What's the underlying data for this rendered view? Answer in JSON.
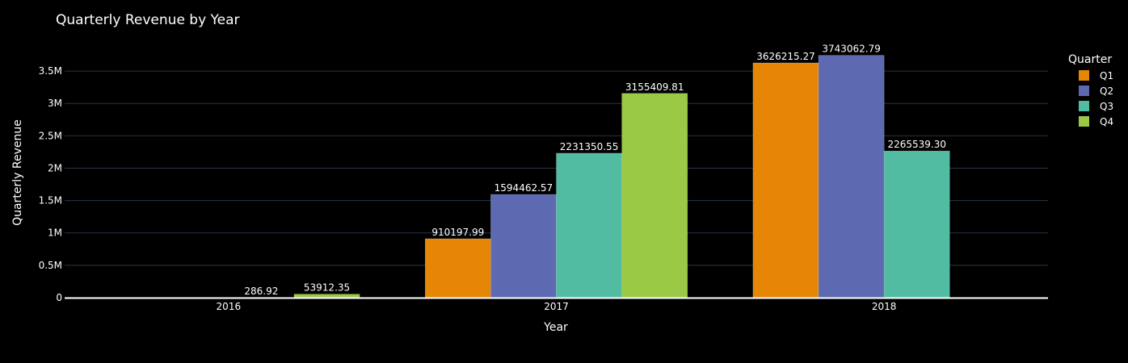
{
  "chart_data": {
    "type": "bar",
    "title": "Quarterly Revenue by Year",
    "xlabel": "Year",
    "ylabel": "Quarterly Revenue",
    "categories": [
      "2016",
      "2017",
      "2018"
    ],
    "legend_title": "Quarter",
    "legend_position": "top-right",
    "ylim": [
      0,
      3900000
    ],
    "yticks": [
      0,
      500000,
      1000000,
      1500000,
      2000000,
      2500000,
      3000000,
      3500000
    ],
    "ytick_labels": [
      "0",
      "0.5M",
      "1M",
      "1.5M",
      "2M",
      "2.5M",
      "3M",
      "3.5M"
    ],
    "grid": true,
    "series": [
      {
        "name": "Q1",
        "color": "#E58606",
        "values": [
          null,
          910197.99,
          3626215.27
        ],
        "labels": [
          "",
          "910197.99",
          "3626215.27"
        ]
      },
      {
        "name": "Q2",
        "color": "#5D69B1",
        "values": [
          null,
          1594462.57,
          3743062.79
        ],
        "labels": [
          "",
          "1594462.57",
          "3743062.79"
        ]
      },
      {
        "name": "Q3",
        "color": "#52BCA3",
        "values": [
          286.92,
          2231350.55,
          2265539.3
        ],
        "labels": [
          "286.92",
          "2231350.55",
          "2265539.30"
        ]
      },
      {
        "name": "Q4",
        "color": "#99C945",
        "values": [
          53912.35,
          3155409.81,
          null
        ],
        "labels": [
          "53912.35",
          "3155409.81",
          ""
        ]
      }
    ]
  }
}
